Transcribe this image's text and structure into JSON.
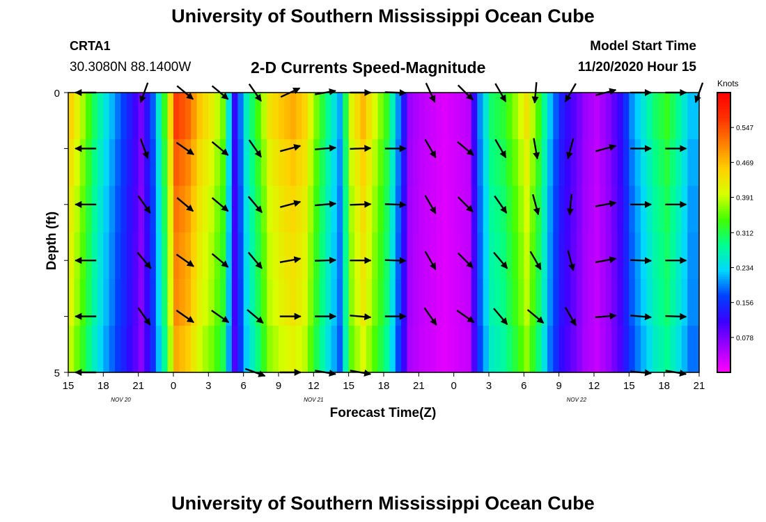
{
  "header": {
    "title": "University of Southern Mississippi Ocean Cube",
    "station": "CRTA1",
    "coords": "30.3080N 88.1400W",
    "plot_title": "2-D Currents Speed-Magnitude",
    "model_start_label": "Model Start Time",
    "model_start_value": "11/20/2020 Hour 15"
  },
  "footer": {
    "title": "University of Southern Mississippi Ocean Cube"
  },
  "chart_data": {
    "type": "heatmap",
    "title": "2-D Currents Speed-Magnitude",
    "xlabel": "Forecast Time(Z)",
    "ylabel": "Depth (ft)",
    "ylim": [
      0,
      5
    ],
    "y_tick_labels": [
      "0",
      "5"
    ],
    "x_tick_labels": [
      "15",
      "18",
      "21",
      "0",
      "3",
      "6",
      "9",
      "12",
      "15",
      "18",
      "21",
      "0",
      "3",
      "6",
      "9",
      "12",
      "15",
      "18",
      "21"
    ],
    "date_labels": [
      {
        "text": "NOV  20",
        "at_tick": 1.5
      },
      {
        "text": "NOV  21",
        "at_tick": 7
      },
      {
        "text": "NOV  22",
        "at_tick": 14.5
      }
    ],
    "colorbar": {
      "unit": "Knots",
      "ticks": [
        "0.547",
        "0.469",
        "0.391",
        "0.312",
        "0.234",
        "0.156",
        "0.078"
      ],
      "tick_values": [
        0.547,
        0.469,
        0.391,
        0.312,
        0.234,
        0.156,
        0.078
      ],
      "range": [
        0.0,
        0.625
      ],
      "colors": [
        "#ff00ff",
        "#a000ff",
        "#3a00ff",
        "#0040ff",
        "#00d8ff",
        "#00ff90",
        "#40ff00",
        "#d8ff00",
        "#ffd000",
        "#ff8000",
        "#ff3000",
        "#ff0000"
      ]
    },
    "time_columns_hours": 54,
    "speed_profile_knots": [
      0.45,
      0.38,
      0.3,
      0.24,
      0.19,
      0.14,
      0.08,
      0.18,
      0.33,
      0.56,
      0.53,
      0.46,
      0.42,
      0.36,
      0.12,
      0.26,
      0.34,
      0.43,
      0.46,
      0.48,
      0.45,
      0.36,
      0.28,
      0.21,
      0.41,
      0.47,
      0.4,
      0.33,
      0.2,
      0.06,
      0.04,
      0.03,
      0.02,
      0.03,
      0.04,
      0.2,
      0.3,
      0.32,
      0.37,
      0.43,
      0.34,
      0.22,
      0.14,
      0.1,
      0.06,
      0.04,
      0.07,
      0.12,
      0.2,
      0.25,
      0.3,
      0.33,
      0.28,
      0.22
    ],
    "depth_level_factors": [
      1.0,
      0.96,
      0.93,
      0.91,
      0.9,
      0.86
    ],
    "vectors": [
      {
        "hour": 1.5,
        "depths": [
          0,
          1,
          2,
          3,
          4,
          5
        ],
        "directions_deg": [
          270,
          270,
          270,
          270,
          270,
          270
        ]
      },
      {
        "hour": 6.5,
        "depths": [
          0,
          1,
          2,
          3,
          4
        ],
        "directions_deg": [
          200,
          160,
          145,
          140,
          145
        ]
      },
      {
        "hour": 10,
        "depths": [
          0,
          1,
          2,
          3,
          4
        ],
        "directions_deg": [
          130,
          125,
          130,
          125,
          125
        ]
      },
      {
        "hour": 13,
        "depths": [
          0,
          1,
          2,
          3,
          4
        ],
        "directions_deg": [
          130,
          130,
          130,
          130,
          125
        ]
      },
      {
        "hour": 16,
        "depths": [
          0,
          1,
          2,
          3,
          4,
          5
        ],
        "directions_deg": [
          145,
          145,
          140,
          140,
          130,
          110
        ]
      },
      {
        "hour": 19,
        "depths": [
          0,
          1,
          2,
          3,
          4,
          5
        ],
        "directions_deg": [
          65,
          75,
          75,
          80,
          90,
          90
        ]
      },
      {
        "hour": 22,
        "depths": [
          0,
          1,
          2,
          3,
          4,
          5
        ],
        "directions_deg": [
          80,
          85,
          85,
          88,
          90,
          100
        ]
      },
      {
        "hour": 25,
        "depths": [
          0,
          1,
          2,
          3,
          4,
          5
        ],
        "directions_deg": [
          90,
          88,
          88,
          90,
          95,
          100
        ]
      },
      {
        "hour": 28,
        "depths": [
          0,
          1,
          2,
          3,
          4
        ],
        "directions_deg": [
          92,
          90,
          92,
          92,
          90
        ]
      },
      {
        "hour": 31,
        "depths": [
          0,
          1,
          2,
          3,
          4
        ],
        "directions_deg": [
          155,
          150,
          150,
          150,
          145
        ]
      },
      {
        "hour": 34,
        "depths": [
          0,
          1,
          2,
          3,
          4
        ],
        "directions_deg": [
          135,
          130,
          135,
          135,
          125
        ]
      },
      {
        "hour": 37,
        "depths": [
          0,
          1,
          2,
          3,
          4
        ],
        "directions_deg": [
          150,
          150,
          145,
          140,
          140
        ]
      },
      {
        "hour": 40,
        "depths": [
          0,
          1,
          2,
          3,
          4
        ],
        "directions_deg": [
          185,
          170,
          165,
          150,
          130
        ]
      },
      {
        "hour": 43,
        "depths": [
          0,
          1,
          2,
          3,
          4
        ],
        "directions_deg": [
          210,
          195,
          185,
          165,
          150
        ]
      },
      {
        "hour": 46,
        "depths": [
          0,
          1,
          2,
          3,
          4
        ],
        "directions_deg": [
          75,
          75,
          80,
          80,
          85
        ]
      },
      {
        "hour": 49,
        "depths": [
          0,
          1,
          2,
          3,
          4,
          5
        ],
        "directions_deg": [
          90,
          90,
          90,
          92,
          95,
          95
        ]
      },
      {
        "hour": 52,
        "depths": [
          0,
          1,
          2,
          3,
          4,
          5
        ],
        "directions_deg": [
          90,
          90,
          90,
          90,
          92,
          100
        ]
      },
      {
        "hour": 54,
        "depths": [
          0
        ],
        "directions_deg": [
          200
        ]
      }
    ]
  }
}
